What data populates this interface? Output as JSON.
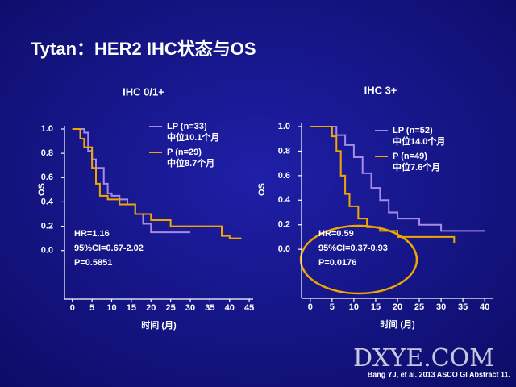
{
  "title": "Tytan：HER2 IHC状态与OS",
  "footer": "Bang YJ, et al.  2013 ASCO GI Abstract 11.",
  "watermark": "DXYE.COM",
  "chart_data": [
    {
      "type": "line",
      "title": "IHC 0/1+",
      "x_label": "时间 (月)",
      "y_label": "OS",
      "step": true,
      "xlim": [
        -2,
        46
      ],
      "xticks": [
        0,
        5,
        10,
        15,
        20,
        25,
        30,
        35,
        40,
        45
      ],
      "ylim": [
        -0.4,
        1.0
      ],
      "yticks": [
        {
          "value": 0,
          "label": "0.0"
        },
        0.2,
        0.4,
        0.6,
        0.8,
        {
          "value": 1,
          "label": "1.0"
        }
      ],
      "series": [
        {
          "name": "LP (n=33)",
          "median_label": "中位10.1个月",
          "color": "#a58ae8",
          "x": [
            0,
            3,
            3,
            4,
            4,
            5,
            5,
            6,
            6,
            8,
            8,
            9,
            9,
            10,
            10,
            12,
            12,
            14,
            14,
            16,
            16,
            18,
            18,
            20,
            20,
            30
          ],
          "values": [
            1,
            1,
            0.97,
            0.97,
            0.82,
            0.82,
            0.75,
            0.75,
            0.68,
            0.68,
            0.55,
            0.55,
            0.47,
            0.47,
            0.45,
            0.45,
            0.42,
            0.42,
            0.38,
            0.38,
            0.3,
            0.3,
            0.22,
            0.22,
            0.15,
            0.15
          ]
        },
        {
          "name": "P (n=29)",
          "median_label": "中位8.7个月",
          "color": "#f0a800",
          "x": [
            0,
            2,
            2,
            3,
            3,
            5,
            5,
            6,
            6,
            7,
            7,
            9,
            9,
            12,
            12,
            16,
            16,
            20,
            20,
            25,
            25,
            38,
            38,
            40,
            40,
            43
          ],
          "values": [
            1,
            1,
            0.92,
            0.92,
            0.85,
            0.85,
            0.68,
            0.68,
            0.55,
            0.55,
            0.45,
            0.45,
            0.42,
            0.42,
            0.38,
            0.38,
            0.3,
            0.3,
            0.25,
            0.25,
            0.2,
            0.2,
            0.12,
            0.12,
            0.1,
            0.1
          ]
        }
      ],
      "annotations": [
        "HR=1.16",
        "95%CI=0.67-2.02",
        "P=0.5851"
      ]
    },
    {
      "type": "line",
      "title": "IHC 3+",
      "x_label": "时间 (月)",
      "y_label": "OS",
      "step": true,
      "xlim": [
        -2,
        42
      ],
      "xticks": [
        0,
        5,
        10,
        15,
        20,
        25,
        30,
        35,
        40
      ],
      "ylim": [
        -0.4,
        1.0
      ],
      "yticks": [
        {
          "value": 0,
          "label": "0.0"
        },
        0.2,
        0.4,
        0.6,
        0.8,
        {
          "value": 1,
          "label": "1.0"
        }
      ],
      "series": [
        {
          "name": "LP (n=52)",
          "median_label": "中位14.0个月",
          "color": "#a58ae8",
          "x": [
            0,
            6,
            6,
            8,
            8,
            10,
            10,
            12,
            12,
            14,
            14,
            16,
            16,
            18,
            18,
            20,
            20,
            25,
            25,
            30,
            30,
            40
          ],
          "values": [
            1,
            1,
            0.93,
            0.93,
            0.85,
            0.85,
            0.75,
            0.75,
            0.62,
            0.62,
            0.5,
            0.5,
            0.4,
            0.4,
            0.3,
            0.3,
            0.25,
            0.25,
            0.2,
            0.2,
            0.15,
            0.15
          ]
        },
        {
          "name": "P (n=49)",
          "median_label": "中位7.6个月",
          "color": "#f0a800",
          "x": [
            0,
            5,
            5,
            6,
            6,
            7,
            7,
            8,
            8,
            9,
            9,
            11,
            11,
            13,
            13,
            16,
            16,
            20,
            20,
            33,
            33
          ],
          "values": [
            1,
            1,
            0.92,
            0.92,
            0.8,
            0.8,
            0.6,
            0.6,
            0.45,
            0.45,
            0.35,
            0.35,
            0.25,
            0.25,
            0.18,
            0.18,
            0.15,
            0.15,
            0.1,
            0.1,
            0.05
          ]
        }
      ],
      "annotations": [
        "HR=0.59",
        "95%CI=0.37-0.93",
        "P=0.0176"
      ]
    }
  ]
}
